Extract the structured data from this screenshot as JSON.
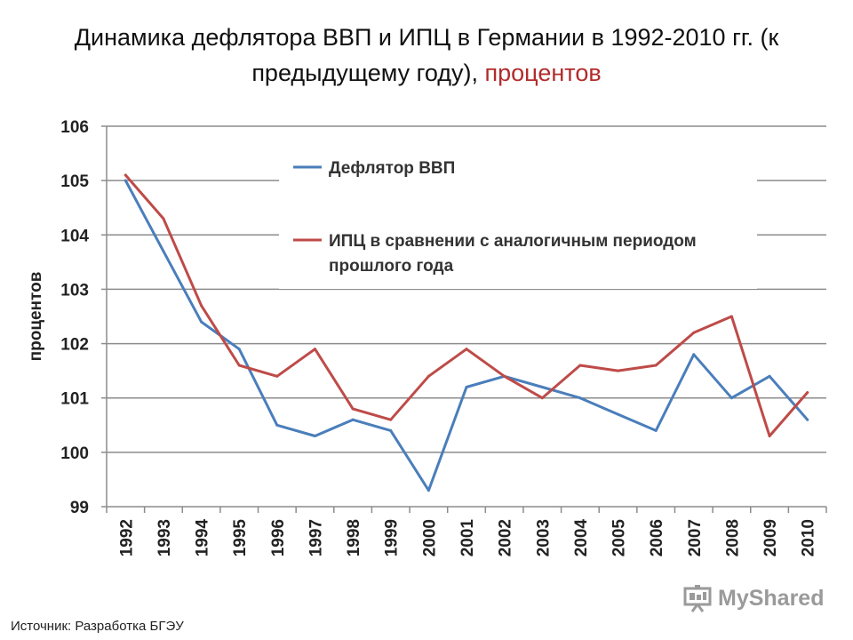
{
  "title": {
    "line1": "Динамика дефлятора ВВП и ИПЦ в Германии в 1992-2010 гг. (к",
    "line2_main": "предыдущему году), ",
    "line2_accent": "процентов",
    "accent_color": "#b22b2b"
  },
  "source": "Источник: Разработка БГЭУ",
  "watermark": {
    "text": "MyShared",
    "icon": "presentation-board-icon"
  },
  "chart_data": {
    "type": "line",
    "ylabel": "процентов",
    "xlabel": "",
    "ylim": [
      99,
      106
    ],
    "yticks": [
      99,
      100,
      101,
      102,
      103,
      104,
      105,
      106
    ],
    "grid": true,
    "legend_placement": "top-center",
    "categories": [
      "1992",
      "1993",
      "1994",
      "1995",
      "1996",
      "1997",
      "1998",
      "1999",
      "2000",
      "2001",
      "2002",
      "2003",
      "2004",
      "2005",
      "2006",
      "2007",
      "2008",
      "2009",
      "2010"
    ],
    "series": [
      {
        "name": "Дефлятор ВВП",
        "color": "#4a7ebb",
        "values": [
          105.0,
          103.7,
          102.4,
          101.9,
          100.5,
          100.3,
          100.6,
          100.4,
          99.3,
          101.2,
          101.4,
          101.2,
          101.0,
          100.7,
          100.4,
          101.8,
          101.0,
          101.4,
          100.6
        ]
      },
      {
        "name": "ИПЦ в сравнении с аналогичным периодом прошлого года",
        "name_lines": [
          "ИПЦ в сравнении с аналогичным периодом",
          "прошлого года"
        ],
        "color": "#be4b48",
        "values": [
          105.1,
          104.3,
          102.7,
          101.6,
          101.4,
          101.9,
          100.8,
          100.6,
          101.4,
          101.9,
          101.4,
          101.0,
          101.6,
          101.5,
          101.6,
          102.2,
          102.5,
          100.3,
          101.1
        ]
      }
    ]
  }
}
